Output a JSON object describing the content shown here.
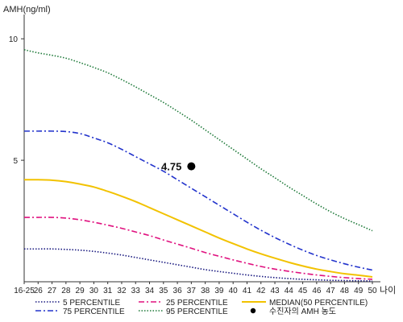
{
  "chart_data": {
    "type": "line",
    "ylabel": "AMH(ng/ml)",
    "xlabel": "나이",
    "ylim": [
      0,
      11
    ],
    "yticks": [
      5,
      10
    ],
    "x": [
      "16-25",
      "26",
      "27",
      "28",
      "29",
      "30",
      "31",
      "32",
      "33",
      "34",
      "35",
      "36",
      "37",
      "38",
      "39",
      "40",
      "41",
      "42",
      "43",
      "44",
      "45",
      "46",
      "47",
      "48",
      "49",
      "50"
    ],
    "grid": false,
    "series": [
      {
        "name": "5 PERCENTILE",
        "color": "#1a1a80",
        "style": "dotted",
        "values": [
          1.35,
          1.35,
          1.35,
          1.33,
          1.3,
          1.25,
          1.18,
          1.1,
          1.0,
          0.9,
          0.8,
          0.7,
          0.6,
          0.5,
          0.42,
          0.35,
          0.28,
          0.22,
          0.17,
          0.13,
          0.1,
          0.08,
          0.06,
          0.05,
          0.04,
          0.03
        ]
      },
      {
        "name": "25 PERCENTILE",
        "color": "#e0117f",
        "style": "dash-dot",
        "values": [
          2.65,
          2.65,
          2.65,
          2.62,
          2.55,
          2.45,
          2.33,
          2.2,
          2.05,
          1.9,
          1.72,
          1.55,
          1.38,
          1.2,
          1.05,
          0.9,
          0.76,
          0.63,
          0.52,
          0.43,
          0.35,
          0.28,
          0.22,
          0.17,
          0.13,
          0.1
        ]
      },
      {
        "name": "MEDIAN(50 PERCENTILE)",
        "color": "#f2c200",
        "style": "solid",
        "values": [
          4.2,
          4.2,
          4.18,
          4.12,
          4.02,
          3.9,
          3.72,
          3.52,
          3.3,
          3.05,
          2.8,
          2.55,
          2.3,
          2.05,
          1.8,
          1.57,
          1.35,
          1.15,
          0.97,
          0.8,
          0.65,
          0.52,
          0.42,
          0.33,
          0.27,
          0.2
        ]
      },
      {
        "name": "75 PERCENTILE",
        "color": "#2233cc",
        "style": "dash-dot",
        "values": [
          6.2,
          6.2,
          6.2,
          6.18,
          6.1,
          5.92,
          5.72,
          5.45,
          5.15,
          4.85,
          4.55,
          4.2,
          3.85,
          3.5,
          3.15,
          2.8,
          2.45,
          2.12,
          1.82,
          1.55,
          1.3,
          1.08,
          0.9,
          0.74,
          0.6,
          0.48
        ]
      },
      {
        "name": "95 PERCENTILE",
        "color": "#1f7a3a",
        "style": "dotted",
        "values": [
          9.55,
          9.42,
          9.32,
          9.2,
          9.02,
          8.82,
          8.6,
          8.32,
          8.02,
          7.7,
          7.38,
          7.02,
          6.65,
          6.25,
          5.85,
          5.45,
          5.05,
          4.65,
          4.28,
          3.9,
          3.55,
          3.2,
          2.88,
          2.6,
          2.35,
          2.1
        ]
      }
    ],
    "points": [
      {
        "name": "수진자의 AMH 농도",
        "x": "37",
        "y": 4.75,
        "label": "4.75",
        "color": "#000000"
      }
    ],
    "legend": {
      "placement": "bottom",
      "items": [
        {
          "label": "5 PERCENTILE",
          "color": "#1a1a80",
          "style": "dotted"
        },
        {
          "label": "25 PERCENTILE",
          "color": "#e0117f",
          "style": "dash-dot"
        },
        {
          "label": "MEDIAN(50 PERCENTILE)",
          "color": "#f2c200",
          "style": "solid"
        },
        {
          "label": "75 PERCENTILE",
          "color": "#2233cc",
          "style": "dash-dot"
        },
        {
          "label": "95 PERCENTILE",
          "color": "#1f7a3a",
          "style": "dotted"
        },
        {
          "label": "수진자의 AMH 농도",
          "color": "#000000",
          "style": "marker"
        }
      ]
    }
  }
}
